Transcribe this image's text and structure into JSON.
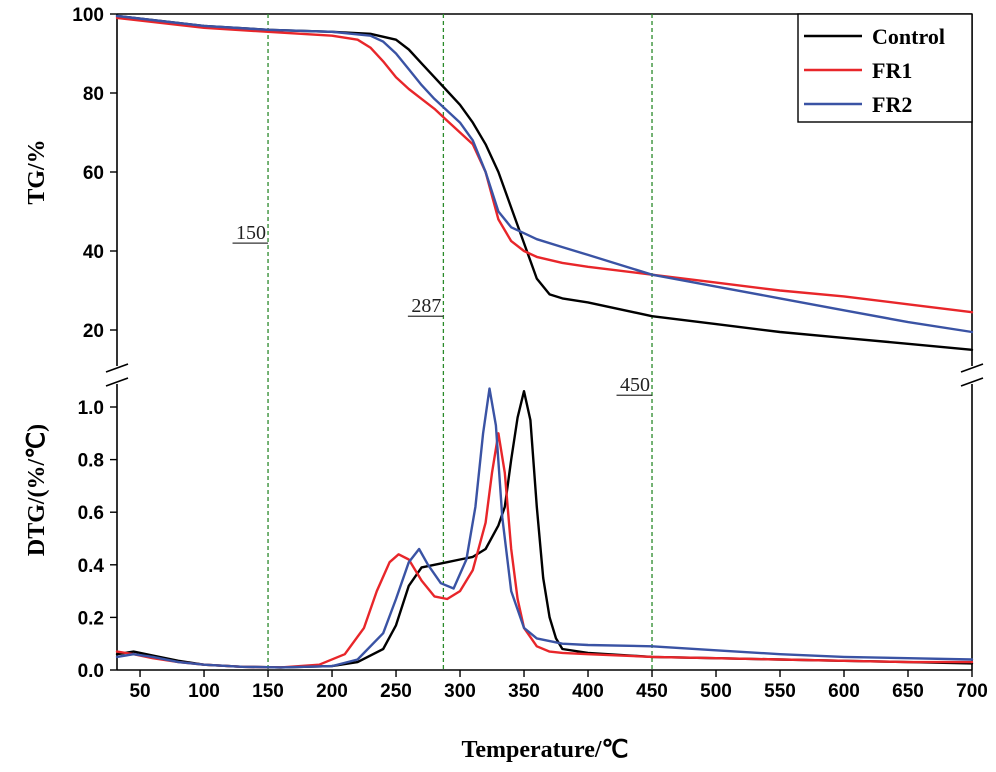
{
  "chart_data": {
    "type": "line",
    "xlabel": "Temperature/℃",
    "xlim": [
      32,
      700
    ],
    "x_ticks": [
      50,
      100,
      150,
      200,
      250,
      300,
      350,
      400,
      450,
      500,
      550,
      600,
      650,
      700
    ],
    "markers": [
      {
        "x": 150,
        "label": "150",
        "label_y": 43
      },
      {
        "x": 287,
        "label": "287",
        "label_y": 24.5
      },
      {
        "x": 450,
        "label": "450",
        "label_y": 1.06
      }
    ],
    "legend": {
      "position": "top-right",
      "entries": [
        "Control",
        "FR1",
        "FR2"
      ]
    },
    "colors": {
      "Control": "#000000",
      "FR1": "#e8262a",
      "FR2": "#3a53a4",
      "marker": "#2a8a2a"
    },
    "panels": [
      {
        "name": "TG",
        "ylabel": "TG/%",
        "ylim": [
          14,
          100
        ],
        "y_ticks": [
          20,
          40,
          60,
          80,
          100
        ],
        "series": [
          {
            "name": "Control",
            "x": [
              32,
              100,
              150,
              200,
              230,
              250,
              260,
              270,
              280,
              290,
              300,
              310,
              320,
              330,
              340,
              350,
              360,
              370,
              380,
              400,
              450,
              500,
              550,
              600,
              650,
              700
            ],
            "y": [
              99.5,
              97,
              96,
              95.5,
              95,
              93.5,
              91,
              87.5,
              84,
              80.5,
              77,
              72.5,
              67,
              60,
              51,
              42,
              33,
              29,
              28,
              27,
              23.5,
              21.5,
              19.5,
              18,
              16.5,
              15
            ]
          },
          {
            "name": "FR1",
            "x": [
              32,
              100,
              150,
              200,
              220,
              230,
              240,
              250,
              260,
              270,
              280,
              290,
              300,
              310,
              320,
              330,
              340,
              350,
              360,
              380,
              400,
              450,
              500,
              550,
              600,
              650,
              700
            ],
            "y": [
              99,
              96.5,
              95.5,
              94.5,
              93.5,
              91.5,
              88,
              84,
              81,
              78.5,
              76,
              73,
              70,
              67,
              60,
              48,
              42.5,
              40,
              38.5,
              37,
              36,
              34,
              32,
              30,
              28.5,
              26.5,
              24.5
            ]
          },
          {
            "name": "FR2",
            "x": [
              32,
              100,
              150,
              200,
              230,
              240,
              250,
              260,
              270,
              280,
              290,
              300,
              310,
              320,
              330,
              340,
              350,
              360,
              380,
              400,
              450,
              500,
              550,
              600,
              650,
              700
            ],
            "y": [
              99.5,
              97,
              96,
              95.5,
              94.5,
              93,
              90,
              86,
              82,
              78.5,
              75.5,
              72.5,
              68,
              60,
              50,
              46,
              44.5,
              43,
              41,
              39,
              34,
              31,
              28,
              25,
              22,
              19.5
            ]
          }
        ]
      },
      {
        "name": "DTG",
        "ylabel": "DTG/(%/℃)",
        "ylim": [
          0,
          1.1
        ],
        "y_ticks": [
          0.0,
          0.2,
          0.4,
          0.6,
          0.8,
          1.0
        ],
        "y_tick_labels": [
          "0.0",
          "0.2",
          "0.4",
          "0.6",
          "0.8",
          "1.0"
        ],
        "series": [
          {
            "name": "Control",
            "x": [
              32,
              45,
              60,
              80,
              100,
              130,
              160,
              200,
              220,
              240,
              250,
              260,
              270,
              280,
              290,
              300,
              310,
              320,
              330,
              335,
              340,
              345,
              350,
              355,
              360,
              365,
              370,
              375,
              380,
              400,
              450,
              500,
              550,
              600,
              650,
              700
            ],
            "y": [
              0.06,
              0.07,
              0.055,
              0.035,
              0.02,
              0.012,
              0.01,
              0.015,
              0.03,
              0.08,
              0.17,
              0.32,
              0.39,
              0.4,
              0.41,
              0.42,
              0.43,
              0.46,
              0.55,
              0.62,
              0.8,
              0.96,
              1.06,
              0.95,
              0.62,
              0.35,
              0.2,
              0.12,
              0.08,
              0.065,
              0.05,
              0.045,
              0.04,
              0.035,
              0.03,
              0.025
            ]
          },
          {
            "name": "FR1",
            "x": [
              32,
              45,
              60,
              80,
              100,
              130,
              160,
              190,
              210,
              225,
              235,
              245,
              252,
              260,
              270,
              280,
              290,
              300,
              310,
              320,
              325,
              330,
              335,
              340,
              345,
              350,
              360,
              370,
              380,
              400,
              450,
              500,
              550,
              600,
              650,
              700
            ],
            "y": [
              0.07,
              0.06,
              0.045,
              0.03,
              0.02,
              0.012,
              0.01,
              0.02,
              0.06,
              0.16,
              0.3,
              0.41,
              0.44,
              0.42,
              0.34,
              0.28,
              0.27,
              0.3,
              0.38,
              0.56,
              0.75,
              0.9,
              0.75,
              0.46,
              0.27,
              0.16,
              0.09,
              0.07,
              0.065,
              0.06,
              0.05,
              0.045,
              0.04,
              0.035,
              0.03,
              0.03
            ]
          },
          {
            "name": "FR2",
            "x": [
              32,
              45,
              60,
              80,
              100,
              130,
              160,
              200,
              220,
              240,
              250,
              260,
              268,
              275,
              285,
              295,
              305,
              312,
              318,
              323,
              328,
              333,
              340,
              350,
              360,
              380,
              400,
              450,
              500,
              550,
              600,
              650,
              700
            ],
            "y": [
              0.05,
              0.06,
              0.05,
              0.03,
              0.02,
              0.012,
              0.01,
              0.015,
              0.04,
              0.14,
              0.27,
              0.41,
              0.46,
              0.4,
              0.33,
              0.31,
              0.42,
              0.62,
              0.9,
              1.07,
              0.93,
              0.58,
              0.3,
              0.16,
              0.12,
              0.1,
              0.095,
              0.09,
              0.075,
              0.06,
              0.05,
              0.045,
              0.04
            ]
          }
        ]
      }
    ]
  }
}
